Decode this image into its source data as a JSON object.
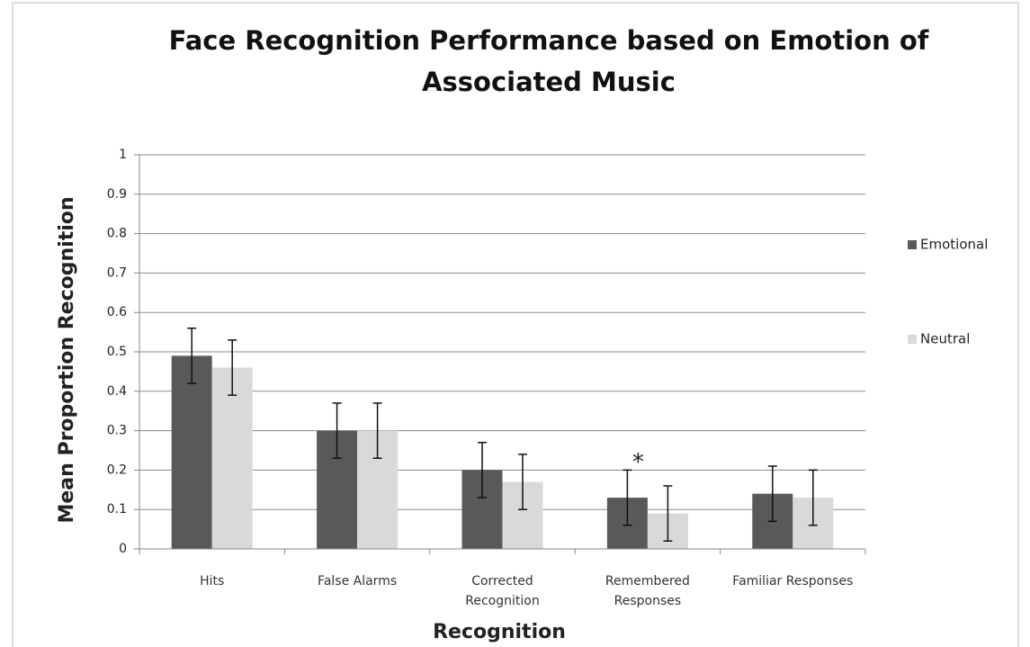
{
  "chart_data": {
    "type": "bar",
    "title": "Face Recognition Performance based on Emotion of Associated Music",
    "x_label": "Recognition",
    "y_label": "Mean Proportion Recognition",
    "categories": [
      "Hits",
      "False Alarms",
      "Corrected Recognition",
      "Remembered Responses",
      "Familiar Responses"
    ],
    "series": [
      {
        "name": "Emotional",
        "color": "#595959",
        "values": [
          0.49,
          0.3,
          0.2,
          0.13,
          0.14
        ],
        "errors": [
          0.07,
          0.07,
          0.07,
          0.07,
          0.07
        ]
      },
      {
        "name": "Neutral",
        "color": "#d9d9d9",
        "values": [
          0.46,
          0.3,
          0.17,
          0.09,
          0.13
        ],
        "errors": [
          0.07,
          0.07,
          0.07,
          0.07,
          0.07
        ]
      }
    ],
    "annotation": "*",
    "ylim": [
      0,
      1
    ],
    "yticks": [
      0,
      0.1,
      0.2,
      0.3,
      0.4,
      0.5,
      0.6,
      0.7,
      0.8,
      0.9,
      1
    ],
    "grid": true,
    "legend": "right"
  }
}
